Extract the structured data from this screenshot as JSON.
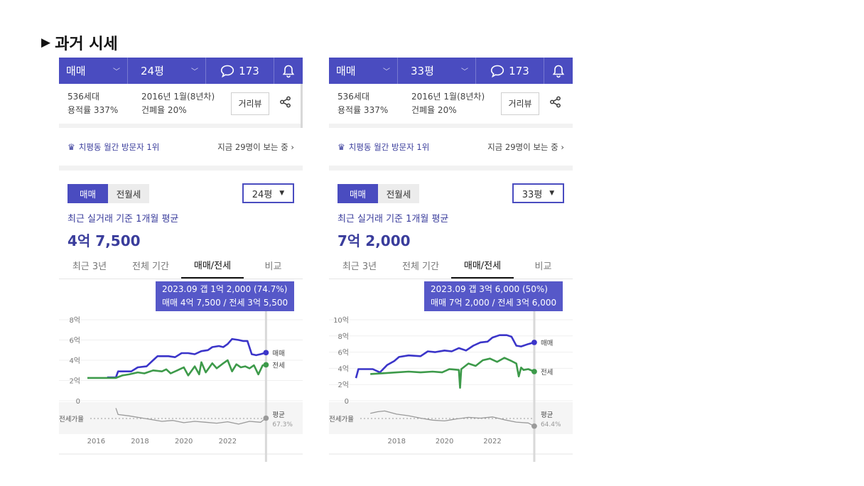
{
  "page": {
    "title": "과거 시세",
    "title_marker": "▶"
  },
  "colors": {
    "accent": "#4a4cc0",
    "sale_line": "#3b35c9",
    "jeonse_line": "#3d9a4a",
    "ratio_line": "#9a9a9a"
  },
  "panels": [
    {
      "topbar": {
        "type": "매매",
        "size": "24평",
        "comments": "173"
      },
      "info": {
        "households": "536세대",
        "far": "용적률 337%",
        "built": "2016년 1월(8년차)",
        "bcr": "건폐율 20%",
        "roadview": "거리뷰"
      },
      "visitor": {
        "rank": "치평동 월간 방문자 1위",
        "now": "지금 29명이 보는 중"
      },
      "toggle": {
        "on": "매매",
        "off": "전월세"
      },
      "size_select": "24평",
      "avg_label": "최근 실거래 기준 1개월 평균",
      "avg_value": "4억 7,500",
      "tabs": [
        "최근 3년",
        "전체 기간",
        "매매/전세",
        "비교"
      ],
      "tooltip": {
        "line1": "2023.09  갭 1억 2,000 (74.7%)",
        "line2": "매매 4억 7,500 / 전세 3억 5,500"
      },
      "legend": {
        "sale": "매매",
        "jeonse": "전세",
        "avg": "평균",
        "avg_value": "67.3%",
        "ratio_label": "전세가율"
      },
      "chart_data": {
        "type": "line",
        "ylabels": [
          "8억",
          "6억",
          "4억",
          "2억",
          "0"
        ],
        "yticks": [
          8,
          6,
          4,
          2,
          0
        ],
        "ylim": [
          0,
          8
        ],
        "xlabels": [
          "2016",
          "2018",
          "2020",
          "2022"
        ],
        "xticks": [
          2016,
          2018,
          2020,
          2022
        ],
        "xlim": [
          2015.6,
          2023.9
        ],
        "series": [
          {
            "name": "매매",
            "x": [
              2016.5,
              2016.9,
              2017.0,
              2017.6,
              2017.9,
              2018.3,
              2018.6,
              2018.8,
              2019.0,
              2019.3,
              2019.6,
              2019.9,
              2020.2,
              2020.5,
              2020.8,
              2021.1,
              2021.3,
              2021.6,
              2021.8,
              2022.0,
              2022.2,
              2022.5,
              2022.7,
              2022.9,
              2023.1,
              2023.3,
              2023.5,
              2023.75
            ],
            "values": [
              2.3,
              2.3,
              2.9,
              2.9,
              3.3,
              3.4,
              4.0,
              4.4,
              4.4,
              4.4,
              4.3,
              4.7,
              4.7,
              4.6,
              4.9,
              5.0,
              5.3,
              5.4,
              5.3,
              5.6,
              6.1,
              6.0,
              5.9,
              5.9,
              4.6,
              4.5,
              4.6,
              4.75
            ]
          },
          {
            "name": "전세",
            "x": [
              2015.6,
              2016.9,
              2017.2,
              2017.5,
              2017.9,
              2018.2,
              2018.6,
              2019.0,
              2019.2,
              2019.4,
              2019.7,
              2020.0,
              2020.2,
              2020.5,
              2020.7,
              2020.8,
              2021.0,
              2021.3,
              2021.5,
              2021.8,
              2022.0,
              2022.2,
              2022.4,
              2022.6,
              2022.8,
              2023.0,
              2023.2,
              2023.4,
              2023.6,
              2023.75
            ],
            "values": [
              2.25,
              2.25,
              2.5,
              2.6,
              2.8,
              2.7,
              3.0,
              2.9,
              3.1,
              2.7,
              3.0,
              3.3,
              2.5,
              3.4,
              2.6,
              3.8,
              2.8,
              3.7,
              3.2,
              3.7,
              4.0,
              2.9,
              3.6,
              3.3,
              3.4,
              3.2,
              3.5,
              2.6,
              3.5,
              3.55
            ]
          },
          {
            "name": "전세가율",
            "x": [
              2016.9,
              2017.0,
              2017.5,
              2018.0,
              2018.5,
              2019.0,
              2019.5,
              2020.0,
              2020.5,
              2021.0,
              2021.5,
              2022.0,
              2022.5,
              2023.0,
              2023.5,
              2023.75
            ],
            "values": [
              97,
              83,
              80,
              76,
              72,
              68,
              70,
              65,
              68,
              66,
              64,
              67,
              62,
              68,
              66,
              75
            ]
          }
        ]
      }
    },
    {
      "topbar": {
        "type": "매매",
        "size": "33평",
        "comments": "173"
      },
      "info": {
        "households": "536세대",
        "far": "용적률 337%",
        "built": "2016년 1월(8년차)",
        "bcr": "건폐율 20%",
        "roadview": "거리뷰"
      },
      "visitor": {
        "rank": "치평동 월간 방문자 1위",
        "now": "지금 29명이 보는 중"
      },
      "toggle": {
        "on": "매매",
        "off": "전월세"
      },
      "size_select": "33평",
      "avg_label": "최근 실거래 기준 1개월 평균",
      "avg_value": "7억 2,000",
      "tabs": [
        "최근 3년",
        "전체 기간",
        "매매/전세",
        "비교"
      ],
      "tooltip": {
        "line1": "2023.09  갭 3억 6,000 (50%)",
        "line2": "매매 7억 2,000 / 전세 3억 6,000"
      },
      "legend": {
        "sale": "매매",
        "jeonse": "전세",
        "avg": "평균",
        "avg_value": "64.4%",
        "ratio_label": "전세가율"
      },
      "chart_data": {
        "type": "line",
        "ylabels": [
          "10억",
          "8억",
          "6억",
          "4억",
          "2억",
          "0"
        ],
        "yticks": [
          10,
          8,
          6,
          4,
          2,
          0
        ],
        "ylim": [
          0,
          10
        ],
        "xlabels": [
          "2018",
          "2020",
          "2022"
        ],
        "xticks": [
          2018,
          2020,
          2022
        ],
        "xlim": [
          2016.3,
          2023.9
        ],
        "series": [
          {
            "name": "매매",
            "x": [
              2016.3,
              2016.4,
              2017.0,
              2017.3,
              2017.6,
              2017.9,
              2018.1,
              2018.5,
              2019.0,
              2019.3,
              2019.6,
              2020.0,
              2020.3,
              2020.6,
              2020.9,
              2021.2,
              2021.5,
              2021.8,
              2022.0,
              2022.3,
              2022.6,
              2022.8,
              2023.0,
              2023.2,
              2023.5,
              2023.75
            ],
            "values": [
              2.8,
              3.9,
              3.9,
              3.5,
              4.4,
              4.9,
              5.4,
              5.6,
              5.5,
              6.1,
              6.0,
              6.2,
              6.1,
              6.5,
              6.2,
              6.8,
              7.2,
              7.3,
              7.8,
              8.1,
              8.1,
              7.9,
              6.8,
              6.7,
              7.0,
              7.2
            ]
          },
          {
            "name": "전세",
            "x": [
              2016.9,
              2017.5,
              2018.0,
              2018.5,
              2019.0,
              2019.5,
              2019.9,
              2020.2,
              2020.6,
              2020.65,
              2020.7,
              2021.0,
              2021.3,
              2021.6,
              2021.9,
              2022.2,
              2022.5,
              2022.8,
              2023.0,
              2023.1,
              2023.2,
              2023.3,
              2023.5,
              2023.75
            ],
            "values": [
              3.3,
              3.4,
              3.5,
              3.6,
              3.5,
              3.6,
              3.5,
              3.9,
              3.8,
              1.6,
              3.9,
              4.6,
              4.3,
              5.0,
              5.2,
              4.8,
              5.3,
              4.9,
              4.6,
              3.0,
              4.1,
              3.8,
              3.9,
              3.6
            ]
          },
          {
            "name": "전세가율",
            "x": [
              2016.9,
              2017.2,
              2017.5,
              2018.0,
              2018.5,
              2019.0,
              2019.5,
              2020.0,
              2020.5,
              2021.0,
              2021.5,
              2022.0,
              2022.5,
              2023.0,
              2023.5,
              2023.75
            ],
            "values": [
              82,
              86,
              88,
              80,
              76,
              70,
              65,
              63,
              68,
              72,
              70,
              73,
              66,
              60,
              58,
              50
            ]
          }
        ]
      }
    }
  ]
}
